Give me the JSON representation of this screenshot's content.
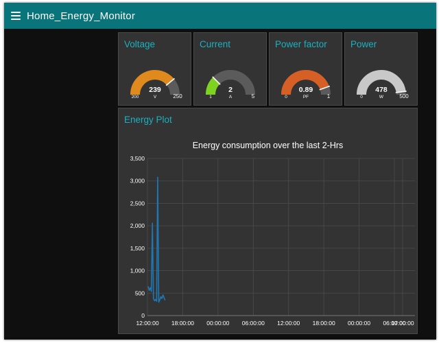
{
  "header": {
    "title": "Home_Energy_Monitor",
    "menu_icon": "hamburger-menu-icon",
    "bar_color": "#097479"
  },
  "gauges": [
    {
      "title": "Voltage",
      "value": "239",
      "unit": "V",
      "min": "200",
      "max": "250",
      "fraction": 0.78,
      "color": "#e08a1e"
    },
    {
      "title": "Current",
      "value": "2",
      "unit": "A",
      "min": "1",
      "max": "5",
      "fraction": 0.25,
      "color": "#7ed321"
    },
    {
      "title": "Power factor",
      "value": "0.89",
      "unit": "PF",
      "min": "0",
      "max": "1",
      "fraction": 0.89,
      "color": "#d55f25"
    },
    {
      "title": "Power",
      "value": "478",
      "unit": "W",
      "min": "0",
      "max": "500",
      "fraction": 0.956,
      "color": "#c8c8c8"
    }
  ],
  "plot": {
    "card_title": "Energy Plot",
    "chart_title": "Energy consumption over the last 2-Hrs"
  },
  "chart_data": {
    "type": "line",
    "title": "Energy consumption over the last 2-Hrs",
    "xlabel": "",
    "ylabel": "",
    "ylim": [
      0,
      3500
    ],
    "yticks": [
      "0",
      "500",
      "1,000",
      "1,500",
      "2,000",
      "2,500",
      "3,000",
      "3,500"
    ],
    "xticks": [
      "12:00:00",
      "18:00:00",
      "00:00:00",
      "06:00:00",
      "12:00:00",
      "18:00:00",
      "00:00:00",
      "06:00:00",
      "17:00:00"
    ],
    "grid": true,
    "series": [
      {
        "color": "#1f77b4",
        "x": [
          0.02,
          0.05,
          0.08,
          0.11,
          0.14,
          0.17,
          0.2,
          0.23,
          0.26,
          0.29,
          0.32,
          0.35,
          0.38,
          0.41,
          0.44,
          0.47,
          0.5
        ],
        "y": [
          650,
          560,
          620,
          540,
          2060,
          380,
          330,
          360,
          320,
          3080,
          300,
          350,
          420,
          380,
          460,
          400,
          340
        ]
      }
    ]
  }
}
